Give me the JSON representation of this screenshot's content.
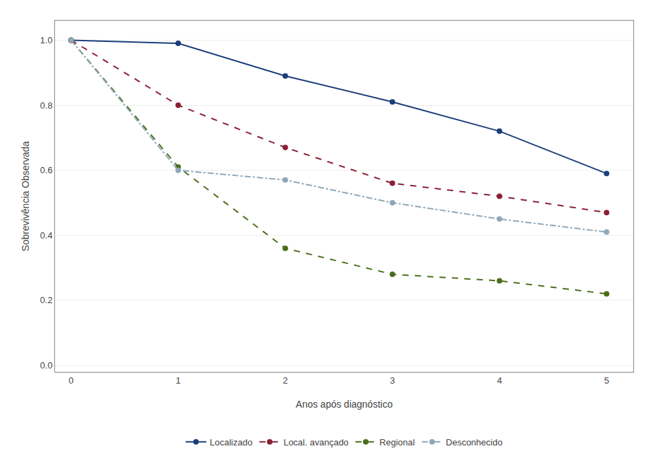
{
  "chart_data": {
    "type": "line",
    "xlabel": "Anos após diagnóstico",
    "ylabel": "Sobrevivência Observada",
    "x": [
      0,
      1,
      2,
      3,
      4,
      5
    ],
    "series": [
      {
        "name": "Localizado",
        "color": "#1a3e7a",
        "line_style": "solid",
        "marker": "circle",
        "values": [
          1.0,
          0.99,
          0.89,
          0.81,
          0.72,
          0.59
        ]
      },
      {
        "name": "Local. avançado",
        "color": "#8b2035",
        "line_style": "dashed",
        "marker": "circle",
        "values": [
          1.0,
          0.8,
          0.67,
          0.56,
          0.52,
          0.47
        ]
      },
      {
        "name": "Regional",
        "color": "#4a6e1a",
        "line_style": "dashed",
        "marker": "circle",
        "values": [
          1.0,
          0.61,
          0.36,
          0.28,
          0.26,
          0.22
        ]
      },
      {
        "name": "Desconhecido",
        "color": "#8fa8b8",
        "line_style": "dashdot",
        "marker": "circle",
        "values": [
          1.0,
          0.6,
          0.57,
          0.5,
          0.45,
          0.41
        ]
      }
    ],
    "xlim": [
      -0.15,
      5.25
    ],
    "ylim": [
      -0.02,
      1.06
    ],
    "xticks": [
      0,
      1,
      2,
      3,
      4,
      5
    ],
    "yticks": [
      {
        "value": 0.0,
        "label": "0.0"
      },
      0.2,
      0.4,
      0.6,
      0.8,
      {
        "value": 1.0,
        "label": "1.0"
      }
    ],
    "grid": "y",
    "legend": "bottom"
  }
}
